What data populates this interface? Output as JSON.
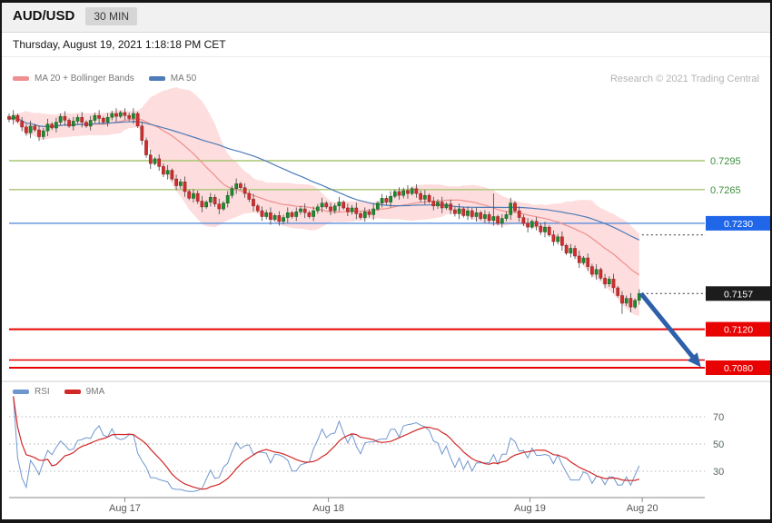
{
  "header": {
    "pair": "AUD/USD",
    "timeframe": "30 MIN"
  },
  "datetime": "Thursday, August 19, 2021 1:18:18 PM CET",
  "credit": "Research © 2021 Trading Central",
  "legend": {
    "band": "MA 20 + Bollinger Bands",
    "ma50": "MA 50"
  },
  "rsi_legend": {
    "rsi": "RSI",
    "ma9": "9MA"
  },
  "colors": {
    "up_candle": "#1f8a2e",
    "down_candle": "#cf2e2e",
    "band_fill": "rgba(249,166,166,0.38)",
    "ma20": "#ef8f8f",
    "ma50": "#4d7cb8",
    "resistance_line": "#a9c573",
    "resistance_text": "#3e8e3e",
    "pivot_line": "#5b8fdd",
    "pivot_chip": "#1f66e8",
    "last_chip": "#1c1c1c",
    "support": "#e80202",
    "rsi_line": "#6f96cf",
    "rsi_ma": "#d22727",
    "arrow": "#2e5fa9"
  },
  "chart_data": {
    "type": "candlestick",
    "title": "AUD/USD 30 MIN",
    "ylim": [
      0.7068,
      0.7362
    ],
    "x_ticks": [
      {
        "label": "Aug 17",
        "index": 27
      },
      {
        "label": "Aug 18",
        "index": 74.5
      },
      {
        "label": "Aug 19",
        "index": 121.5
      },
      {
        "label": "Aug 20",
        "index": 147.7
      }
    ],
    "closes": [
      0.7338,
      0.7342,
      0.7336,
      0.733,
      0.7324,
      0.7331,
      0.7327,
      0.732,
      0.7326,
      0.7333,
      0.7329,
      0.7335,
      0.7341,
      0.7337,
      0.7331,
      0.7336,
      0.734,
      0.7335,
      0.7331,
      0.7337,
      0.7342,
      0.7339,
      0.7335,
      0.734,
      0.7344,
      0.7341,
      0.7345,
      0.7342,
      0.7339,
      0.7344,
      0.7331,
      0.7316,
      0.7301,
      0.7292,
      0.7297,
      0.7289,
      0.7281,
      0.7285,
      0.7276,
      0.7269,
      0.7273,
      0.7263,
      0.7256,
      0.7261,
      0.7253,
      0.7247,
      0.7252,
      0.7257,
      0.725,
      0.7245,
      0.7251,
      0.7259,
      0.7266,
      0.7271,
      0.7267,
      0.7261,
      0.7255,
      0.7248,
      0.7243,
      0.7237,
      0.7241,
      0.7234,
      0.7238,
      0.7232,
      0.7236,
      0.7241,
      0.7237,
      0.7242,
      0.7245,
      0.7241,
      0.7237,
      0.7243,
      0.7247,
      0.7251,
      0.7247,
      0.7243,
      0.7248,
      0.7252,
      0.7246,
      0.7242,
      0.7246,
      0.724,
      0.7236,
      0.7242,
      0.7239,
      0.7245,
      0.7251,
      0.7256,
      0.7252,
      0.7258,
      0.7263,
      0.7259,
      0.7264,
      0.7261,
      0.7266,
      0.7261,
      0.7255,
      0.7259,
      0.7253,
      0.7248,
      0.7252,
      0.7246,
      0.725,
      0.7244,
      0.724,
      0.7245,
      0.7238,
      0.7243,
      0.7237,
      0.7241,
      0.7235,
      0.7239,
      0.7233,
      0.7237,
      0.723,
      0.7235,
      0.7239,
      0.7251,
      0.7243,
      0.7236,
      0.723,
      0.7226,
      0.7232,
      0.7227,
      0.7221,
      0.7226,
      0.7218,
      0.7211,
      0.7216,
      0.7207,
      0.7199,
      0.7204,
      0.7196,
      0.7189,
      0.7194,
      0.7185,
      0.7177,
      0.7182,
      0.7173,
      0.7167,
      0.7172,
      0.7163,
      0.7155,
      0.7147,
      0.7152,
      0.7143,
      0.715,
      0.7157
    ],
    "wick_overrides": {
      "113": {
        "high": 0.7261
      },
      "143": {
        "low": 0.7136
      }
    },
    "levels": [
      {
        "label": "0.7295",
        "price": 0.7295,
        "style": "resistance"
      },
      {
        "label": "0.7265",
        "price": 0.7265,
        "style": "resistance"
      },
      {
        "label": "0.7230",
        "price": 0.723,
        "style": "pivot"
      },
      {
        "label": "0.7157",
        "price": 0.7157,
        "style": "last"
      },
      {
        "label": "0.7120",
        "price": 0.712,
        "style": "support"
      },
      {
        "label": "",
        "price": 0.7088,
        "style": "support-line"
      },
      {
        "label": "0.7080",
        "price": 0.708,
        "style": "support"
      }
    ],
    "dotted_refs": [
      0.7218,
      0.7157
    ],
    "indicators": {
      "ma_fast": 20,
      "ma_slow": 50,
      "bollinger_mult": 2,
      "rsi_period": 14,
      "rsi_ma": 9
    },
    "rsi_ticks": [
      70,
      50,
      30
    ],
    "arrow": {
      "from_price": 0.7157,
      "to_price": 0.7085
    }
  }
}
